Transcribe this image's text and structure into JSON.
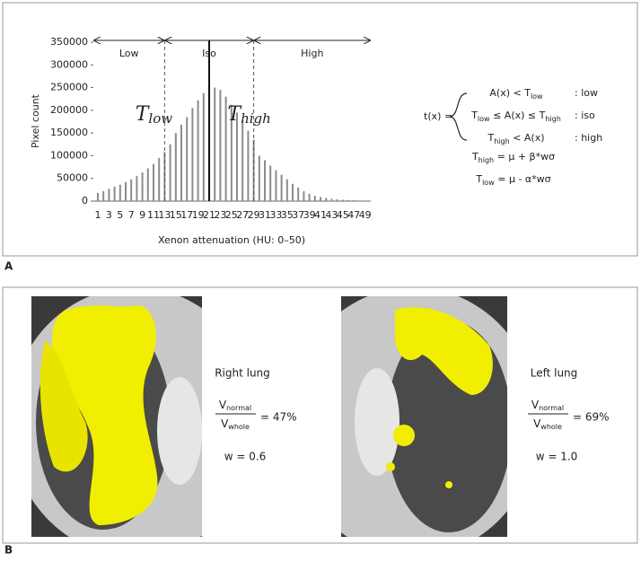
{
  "chart_data": {
    "type": "bar",
    "x_label": "Xenon attenuation (HU: 0–50)",
    "y_label": "Pixel count",
    "categories": [
      1,
      null,
      3,
      null,
      5,
      null,
      7,
      null,
      9,
      null,
      11,
      null,
      13,
      null,
      15,
      null,
      17,
      null,
      19,
      null,
      21,
      null,
      23,
      null,
      25,
      null,
      27,
      null,
      29,
      null,
      31,
      null,
      33,
      null,
      35,
      null,
      37,
      null,
      39,
      null,
      41,
      null,
      43,
      null,
      45,
      null,
      47,
      null,
      49,
      null
    ],
    "values": [
      18000,
      22000,
      27000,
      32000,
      36000,
      42000,
      48000,
      55000,
      63000,
      72000,
      82000,
      95000,
      108000,
      125000,
      150000,
      168000,
      185000,
      205000,
      222000,
      238000,
      250000,
      250000,
      245000,
      230000,
      212000,
      195000,
      178000,
      155000,
      135000,
      100000,
      90000,
      78000,
      68000,
      58000,
      48000,
      38000,
      30000,
      22000,
      16000,
      12000,
      9000,
      7000,
      5000,
      4000,
      3000,
      2500,
      2000,
      1500,
      1000,
      800
    ],
    "color": "#8c8c8c",
    "ylim": [
      0,
      350000
    ],
    "yticks": [
      0,
      50000,
      100000,
      150000,
      200000,
      250000,
      300000,
      350000
    ],
    "regions": [
      "Low",
      "Iso",
      "High"
    ],
    "thresholds": [
      {
        "value": 13,
        "symbol": "T",
        "sub": "low"
      },
      {
        "value": 29,
        "symbol": "T",
        "sub": "high"
      }
    ],
    "mean_line": 21
  },
  "panel_a_label": "A",
  "formula": {
    "lhs": "t(x) =",
    "cases": [
      {
        "condition": [
          "A(x) < T",
          "low"
        ],
        "result": ": low"
      },
      {
        "condition": [
          "T",
          "low",
          " ≤ A(x) ≤ T",
          "high"
        ],
        "result": ": iso"
      },
      {
        "condition": [
          "T",
          "high",
          " < A(x)"
        ],
        "result": ": high"
      }
    ],
    "definitions": [
      [
        "T",
        "high",
        " = μ + β*wσ"
      ],
      [
        "T",
        "low",
        " = μ - α*wσ"
      ]
    ]
  },
  "panel_b_label": "B",
  "lungs": [
    {
      "name": "Right lung",
      "numerator": [
        "V",
        "normal"
      ],
      "denominator": [
        "V",
        "whole"
      ],
      "ratio": "= 47%",
      "weight": "w = 0.6"
    },
    {
      "name": "Left lung",
      "numerator": [
        "V",
        "normal"
      ],
      "denominator": [
        "V",
        "whole"
      ],
      "ratio": "= 69%",
      "weight": "w = 1.0"
    }
  ]
}
